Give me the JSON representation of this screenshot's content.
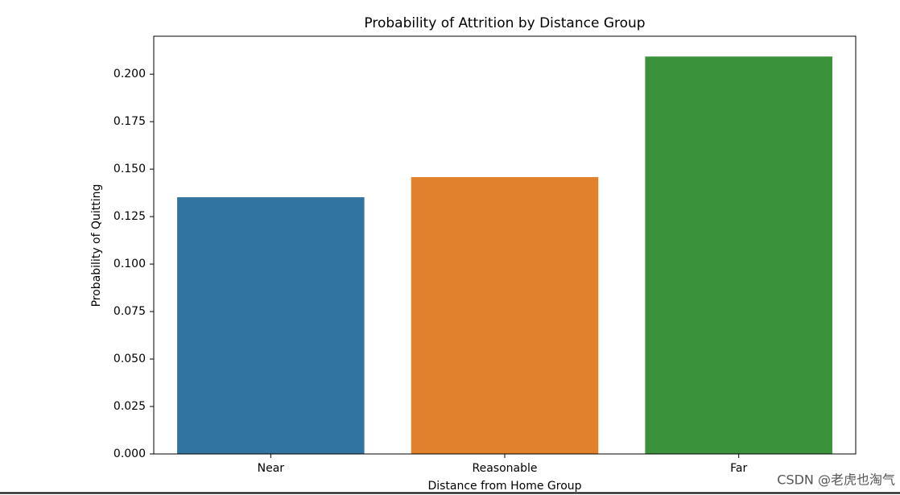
{
  "chart_data": {
    "type": "bar",
    "title": "Probability of Attrition by Distance Group",
    "x_label": "Distance from Home Group",
    "y_label": "Probability of Quitting",
    "categories": [
      "Near",
      "Reasonable",
      "Far"
    ],
    "values": [
      0.1352,
      0.1458,
      0.2093
    ],
    "colors": [
      "#3274a1",
      "#e1812c",
      "#3a923a"
    ],
    "ylim": [
      0,
      0.22
    ],
    "yticks": [
      {
        "value": 0,
        "label": "0.000"
      },
      {
        "value": 0.025,
        "label": "0.025"
      },
      {
        "value": 0.05,
        "label": "0.050"
      },
      {
        "value": 0.075,
        "label": "0.075"
      },
      {
        "value": 0.1,
        "label": "0.100"
      },
      {
        "value": 0.125,
        "label": "0.125"
      },
      {
        "value": 0.15,
        "label": "0.150"
      },
      {
        "value": 0.175,
        "label": "0.175"
      },
      {
        "value": 0.2,
        "label": "0.200"
      }
    ],
    "grid": false
  },
  "watermark": "CSDN @老虎也淘气"
}
